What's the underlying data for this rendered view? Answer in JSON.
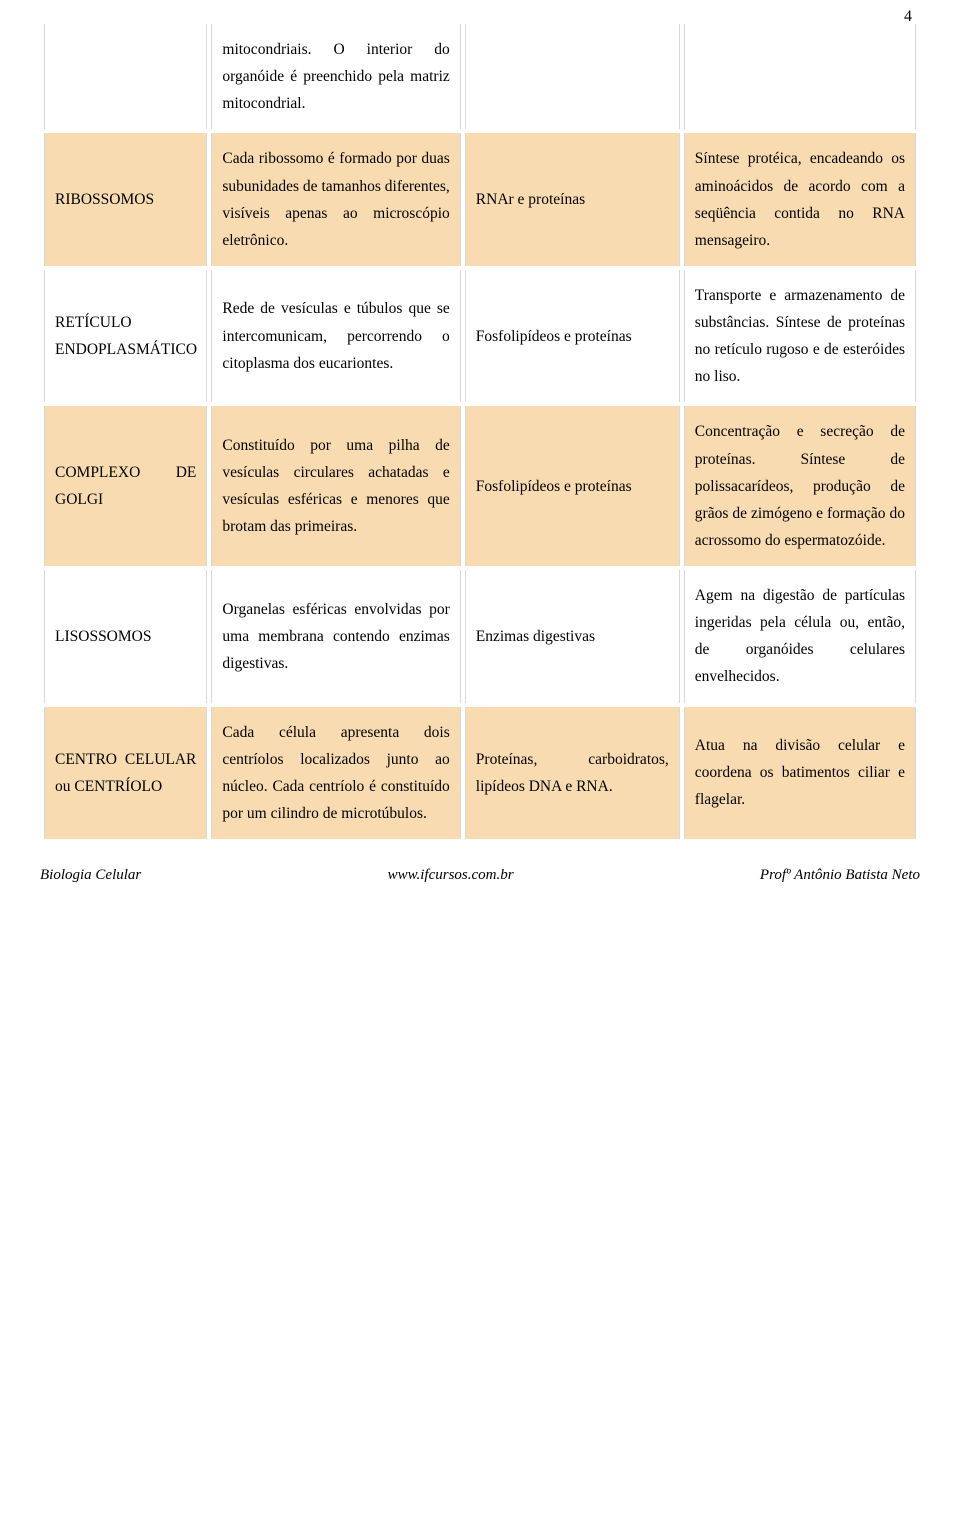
{
  "page_number": "4",
  "colors": {
    "shaded_bg": "#f8dbb1",
    "plain_bg": "#ffffff",
    "cell_border": "#d8d8d8",
    "text": "#000000"
  },
  "typography": {
    "body_fontsize_pt": 12,
    "line_height": 1.75,
    "font_family": "Georgia, serif"
  },
  "column_widths_pct": [
    19,
    29,
    25,
    27
  ],
  "rows": [
    {
      "shaded": false,
      "cells": [
        "",
        "mitocondriais. O interior do organóide é preenchido pela matriz mitocondrial.",
        "",
        ""
      ]
    },
    {
      "shaded": true,
      "cells": [
        "RIBOSSOMOS",
        "Cada ribossomo é formado por duas subunidades de tamanhos diferentes, visíveis apenas ao microscópio eletrônico.",
        "RNAr e proteínas",
        "Síntese protéica, encadeando os aminoácidos de acordo com a seqüência contida no RNA mensageiro."
      ]
    },
    {
      "shaded": false,
      "cells": [
        "RETÍCULO ENDOPLASMÁTICO",
        "Rede de vesículas e túbulos que se intercomunicam, percorrendo o citoplasma dos eucariontes.",
        "Fosfolipídeos e proteínas",
        "Transporte e armazenamento de substâncias. Síntese de proteínas no retículo rugoso e de esteróides no liso."
      ]
    },
    {
      "shaded": true,
      "cells": [
        "COMPLEXO DE GOLGI",
        "Constituído por uma pilha de vesículas circulares achatadas e vesículas esféricas e menores que brotam das primeiras.",
        "Fosfolipídeos e proteínas",
        "Concentração e secreção de proteínas. Síntese de polissacarídeos, produção de grãos de zimógeno e formação do acrossomo do espermatozóide."
      ]
    },
    {
      "shaded": false,
      "cells": [
        "LISOSSOMOS",
        "Organelas esféricas envolvidas por uma membrana contendo enzimas digestivas.",
        "Enzimas digestivas",
        "Agem na digestão de partículas ingeridas pela célula ou, então, de organóides celulares envelhecidos."
      ]
    },
    {
      "shaded": true,
      "cells": [
        "CENTRO CELULAR ou CENTRÍOLO",
        "Cada célula apresenta dois centríolos localizados junto ao núcleo. Cada centríolo é constituído por um cilindro de microtúbulos.",
        "Proteínas, carboidratos, lipídeos DNA e RNA.",
        "Atua na divisão celular e coordena os batimentos ciliar e flagelar."
      ]
    }
  ],
  "footer": {
    "left": "Biologia Celular",
    "center": "www.ifcursos.com.br",
    "right": "Profº Antônio Batista Neto"
  }
}
